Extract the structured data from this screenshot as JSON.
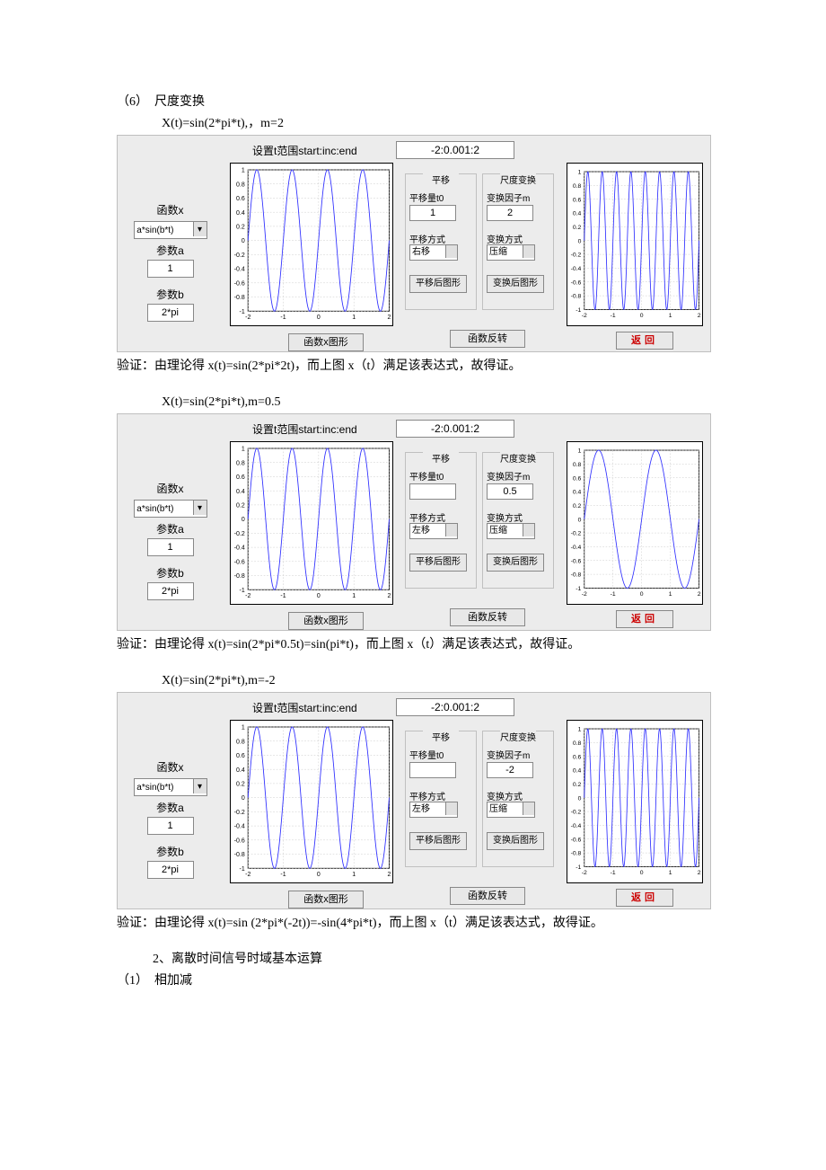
{
  "doc": {
    "section6_num": "（6）",
    "section6_title": "尺度变换",
    "ex1_formula": "X(t)=sin(2*pi*t),，m=2",
    "ex1_verify": "验证：由理论得 x(t)=sin(2*pi*2t)，而上图 x（t）满足该表达式，故得证。",
    "ex2_formula": "X(t)=sin(2*pi*t),m=0.5",
    "ex2_verify": "验证：由理论得 x(t)=sin(2*pi*0.5t)=sin(pi*t)，而上图 x（t）满足该表达式，故得证。",
    "ex3_formula": "X(t)=sin(2*pi*t),m=-2",
    "ex3_verify": "验证：由理论得 x(t)=sin (2*pi*(-2t))=-sin(4*pi*t)，而上图 x（t）满足该表达式，故得证。",
    "section2_title": "2、离散时间信号时域基本运算",
    "section2_sub1_num": "（1）",
    "section2_sub1_title": "相加减"
  },
  "ui": {
    "t_range_label": "设置t范围start:inc:end",
    "t_range_value": "-2:0.001:2",
    "funcx_label": "函数x",
    "funcx_sel": "a*sin(b*t)",
    "parama_label": "参数a",
    "paramb_label": "参数b",
    "parama_val": "1",
    "paramb_val": "2*pi",
    "btn_funcx_graph": "函数x图形",
    "btn_flip": "函数反转",
    "btn_return": "返回",
    "shift_title": "平移",
    "shift_amount_label": "平移量t0",
    "shift_mode_label": "平移方式",
    "shift_btn": "平移后图形",
    "scale_title": "尺度变换",
    "scale_factor_label": "变换因子m",
    "scale_mode_label": "变换方式",
    "scale_mode_val": "压缩",
    "scale_btn": "变换后图形"
  },
  "panels": [
    {
      "shift_val": "1",
      "shift_mode": "右移",
      "scale_val": "2",
      "left_freq": 1.0,
      "right_freq": 2.0
    },
    {
      "shift_val": "",
      "shift_mode": "左移",
      "scale_val": "0.5",
      "left_freq": 1.0,
      "right_freq": 0.5
    },
    {
      "shift_val": "",
      "shift_mode": "左移",
      "scale_val": "-2",
      "left_freq": 1.0,
      "right_freq": 2.0
    }
  ],
  "chart_style": {
    "line_color": "#3030ff",
    "grid_color": "#c0c0c0",
    "bg": "#ffffff",
    "xlim": [
      -2,
      2
    ],
    "ylim": [
      -1,
      1
    ],
    "xtick_step": 1,
    "ytick_step": 0.2,
    "x_ticks": [
      "-2",
      "-1",
      "0",
      "1",
      "2"
    ],
    "y_ticks": [
      "-1",
      "-0.8",
      "-0.6",
      "-0.4",
      "-0.2",
      "0",
      "0.2",
      "0.4",
      "0.6",
      "0.8",
      "1"
    ],
    "line_width": 1
  }
}
